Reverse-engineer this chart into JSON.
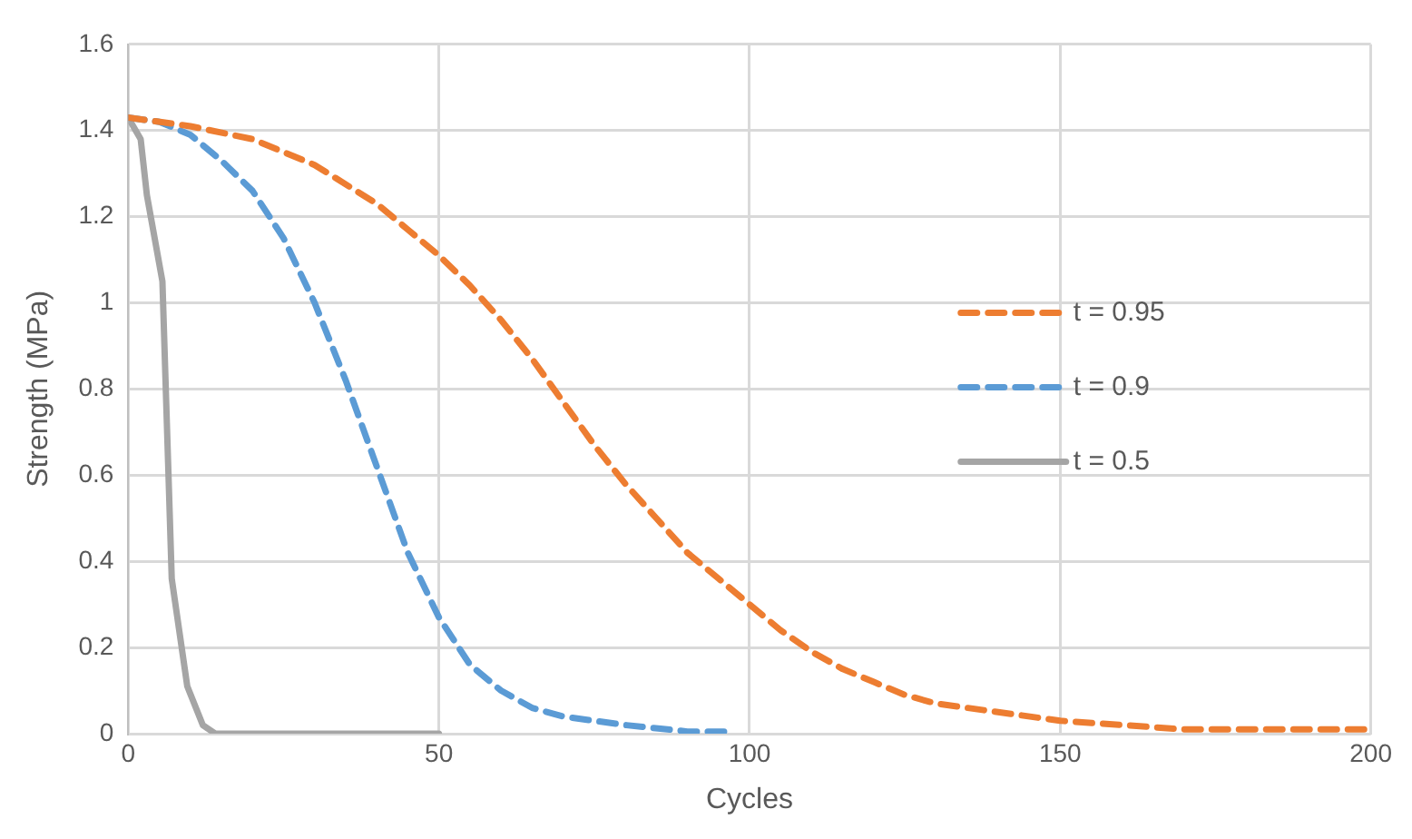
{
  "chart_data": {
    "type": "line",
    "xlabel": "Cycles",
    "ylabel": "Strength (MPa)",
    "xlim": [
      0,
      200
    ],
    "xticks": [
      0,
      50,
      100,
      150,
      200
    ],
    "ylim": [
      0,
      1.6
    ],
    "yticks": [
      0,
      0.2,
      0.4,
      0.6,
      0.8,
      1,
      1.2,
      1.4,
      1.6
    ],
    "grid": true,
    "legend": "right",
    "marker": "none",
    "series": [
      {
        "name": "t = 0.95",
        "color": "#ed7d31",
        "line_style": "dashed",
        "x": [
          0,
          10,
          20,
          30,
          40,
          45,
          50,
          55,
          60,
          65,
          70,
          75,
          80,
          85,
          90,
          95,
          100,
          105,
          110,
          115,
          120,
          125,
          130,
          140,
          150,
          160,
          170,
          200
        ],
        "values": [
          1.43,
          1.41,
          1.38,
          1.32,
          1.23,
          1.17,
          1.11,
          1.04,
          0.96,
          0.87,
          0.77,
          0.67,
          0.58,
          0.5,
          0.42,
          0.36,
          0.3,
          0.24,
          0.19,
          0.15,
          0.12,
          0.09,
          0.07,
          0.05,
          0.03,
          0.02,
          0.01,
          0.01
        ]
      },
      {
        "name": "t = 0.9",
        "color": "#5b9bd5",
        "line_style": "dashed",
        "x": [
          0,
          5,
          10,
          15,
          20,
          25,
          30,
          35,
          40,
          45,
          50,
          55,
          60,
          65,
          70,
          80,
          90,
          97
        ],
        "values": [
          1.43,
          1.42,
          1.39,
          1.33,
          1.26,
          1.15,
          1,
          0.82,
          0.62,
          0.42,
          0.27,
          0.16,
          0.1,
          0.06,
          0.04,
          0.02,
          0.005,
          0.005
        ]
      },
      {
        "name": "t = 0.5",
        "color": "#a5a5a5",
        "line_style": "solid",
        "x": [
          0,
          2,
          3,
          5.5,
          7,
          9.5,
          12,
          14,
          50
        ],
        "values": [
          1.43,
          1.38,
          1.25,
          1.05,
          0.36,
          0.11,
          0.02,
          0,
          0
        ]
      }
    ]
  }
}
